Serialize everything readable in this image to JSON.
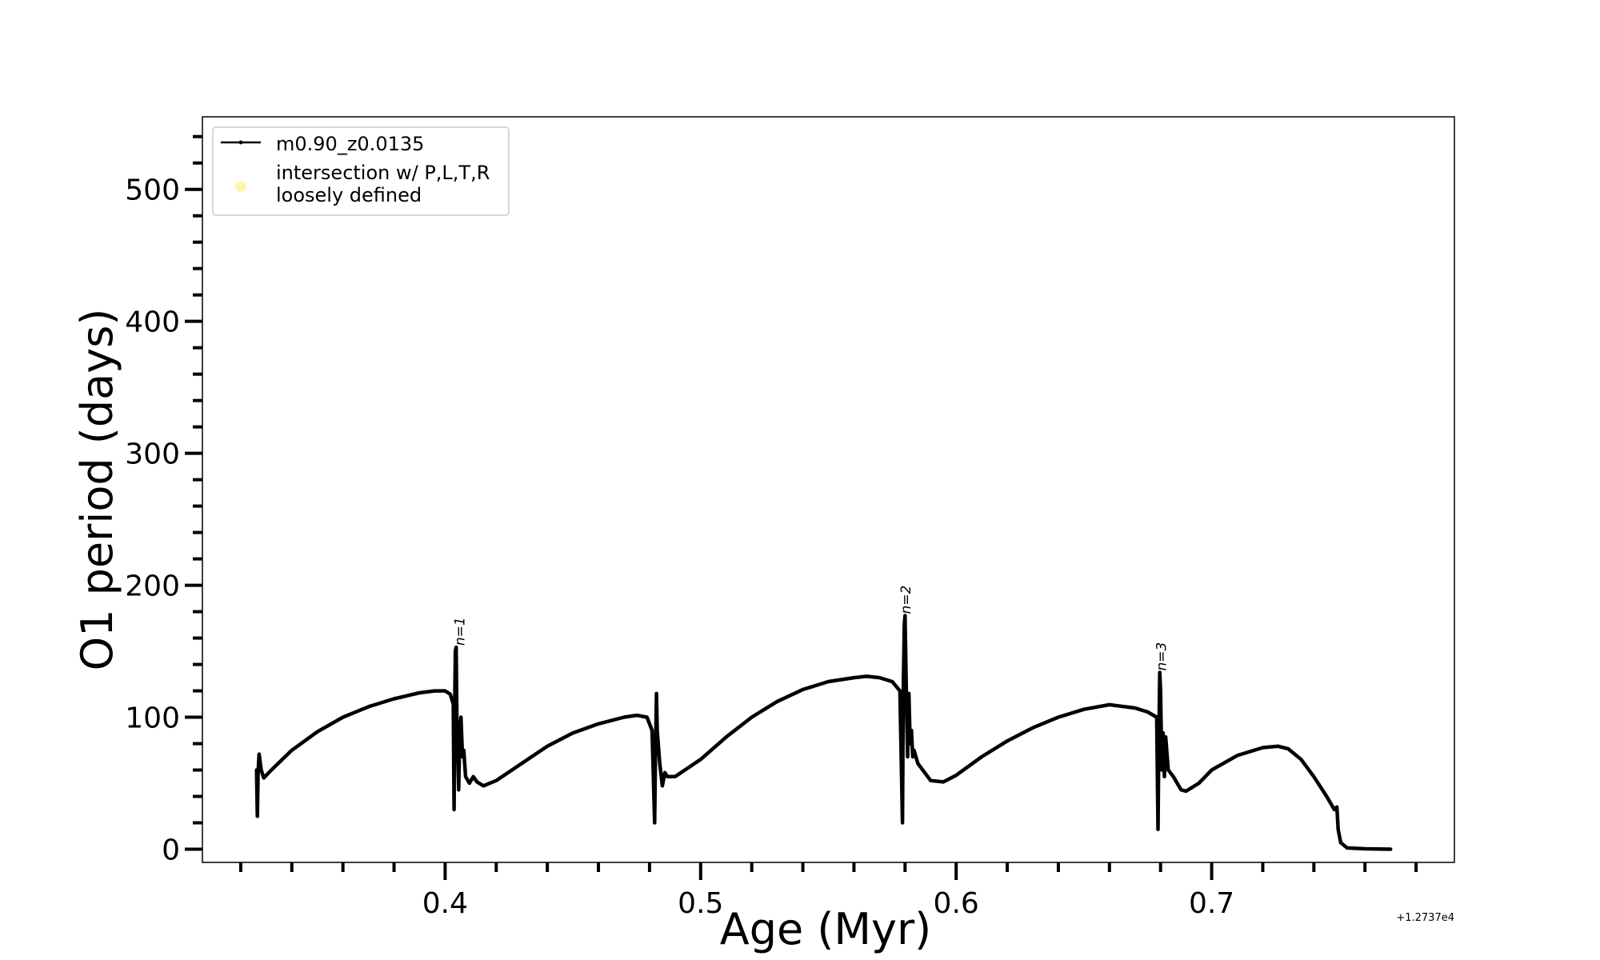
{
  "chart_data": {
    "type": "line",
    "title": "",
    "xlabel": "Age (Myr)",
    "ylabel": "O1 period (days)",
    "x_offset_label": "+1.2737e4",
    "xlim": [
      0.305,
      0.795
    ],
    "ylim": [
      -10,
      555
    ],
    "x_ticks": [
      0.4,
      0.5,
      0.6,
      0.7
    ],
    "x_tick_labels": [
      "0.4",
      "0.5",
      "0.6",
      "0.7"
    ],
    "x_minor_step": 0.02,
    "y_ticks": [
      0,
      100,
      200,
      300,
      400,
      500
    ],
    "y_tick_labels": [
      "0",
      "100",
      "200",
      "300",
      "400",
      "500"
    ],
    "y_minor_step": 20,
    "grid": false,
    "legend": {
      "position": "top-left",
      "entries": [
        {
          "label": "m0.90_z0.0135",
          "marker": "line-dot",
          "color": "#000000"
        },
        {
          "label": "intersection w/ P,L,T,R\nloosely defined",
          "marker": "circle",
          "color": "#fff5b0"
        }
      ]
    },
    "annotations": [
      {
        "text": "n=1",
        "x": 0.4063,
        "y": 153
      },
      {
        "text": "n=2",
        "x": 0.5808,
        "y": 177
      },
      {
        "text": "n=3",
        "x": 0.6808,
        "y": 134
      }
    ],
    "series": [
      {
        "name": "m0.90_z0.0135",
        "color": "#000000",
        "points": [
          [
            0.3262,
            60
          ],
          [
            0.3265,
            25
          ],
          [
            0.3268,
            58
          ],
          [
            0.3272,
            72
          ],
          [
            0.328,
            60
          ],
          [
            0.329,
            54
          ],
          [
            0.332,
            60
          ],
          [
            0.34,
            75
          ],
          [
            0.35,
            89
          ],
          [
            0.36,
            100
          ],
          [
            0.37,
            108
          ],
          [
            0.38,
            114
          ],
          [
            0.39,
            118.5
          ],
          [
            0.396,
            120
          ],
          [
            0.4,
            120
          ],
          [
            0.402,
            117.5
          ],
          [
            0.4032,
            110
          ],
          [
            0.4035,
            30
          ],
          [
            0.4037,
            100
          ],
          [
            0.404,
            150
          ],
          [
            0.4043,
            153
          ],
          [
            0.4046,
            100
          ],
          [
            0.4049,
            75
          ],
          [
            0.4053,
            45
          ],
          [
            0.4058,
            90
          ],
          [
            0.4062,
            100
          ],
          [
            0.4068,
            70
          ],
          [
            0.4073,
            75
          ],
          [
            0.408,
            55
          ],
          [
            0.4095,
            50
          ],
          [
            0.411,
            55
          ],
          [
            0.4125,
            51
          ],
          [
            0.415,
            48
          ],
          [
            0.42,
            52
          ],
          [
            0.43,
            65
          ],
          [
            0.44,
            78
          ],
          [
            0.45,
            88
          ],
          [
            0.46,
            95
          ],
          [
            0.47,
            100
          ],
          [
            0.475,
            101.5
          ],
          [
            0.479,
            100
          ],
          [
            0.481,
            90
          ],
          [
            0.482,
            20
          ],
          [
            0.4823,
            70
          ],
          [
            0.4827,
            118
          ],
          [
            0.483,
            90
          ],
          [
            0.484,
            65
          ],
          [
            0.485,
            48
          ],
          [
            0.486,
            58
          ],
          [
            0.487,
            55
          ],
          [
            0.49,
            55
          ],
          [
            0.5,
            68
          ],
          [
            0.51,
            85
          ],
          [
            0.52,
            100
          ],
          [
            0.53,
            112
          ],
          [
            0.54,
            121
          ],
          [
            0.55,
            127
          ],
          [
            0.56,
            130
          ],
          [
            0.565,
            131
          ],
          [
            0.57,
            130
          ],
          [
            0.575,
            127
          ],
          [
            0.578,
            120
          ],
          [
            0.579,
            20
          ],
          [
            0.5793,
            120
          ],
          [
            0.5797,
            170
          ],
          [
            0.58,
            177
          ],
          [
            0.5805,
            120
          ],
          [
            0.581,
            70
          ],
          [
            0.5815,
            118
          ],
          [
            0.582,
            80
          ],
          [
            0.5825,
            90
          ],
          [
            0.583,
            70
          ],
          [
            0.5835,
            75
          ],
          [
            0.585,
            65
          ],
          [
            0.59,
            52
          ],
          [
            0.595,
            51
          ],
          [
            0.6,
            56
          ],
          [
            0.61,
            70
          ],
          [
            0.62,
            82
          ],
          [
            0.63,
            92
          ],
          [
            0.64,
            100
          ],
          [
            0.65,
            106
          ],
          [
            0.66,
            109.5
          ],
          [
            0.67,
            107
          ],
          [
            0.675,
            104
          ],
          [
            0.6785,
            100
          ],
          [
            0.679,
            15
          ],
          [
            0.6793,
            80
          ],
          [
            0.6797,
            134
          ],
          [
            0.68,
            120
          ],
          [
            0.6805,
            60
          ],
          [
            0.681,
            88
          ],
          [
            0.6815,
            55
          ],
          [
            0.682,
            85
          ],
          [
            0.683,
            60
          ],
          [
            0.685,
            55
          ],
          [
            0.688,
            45
          ],
          [
            0.69,
            44
          ],
          [
            0.695,
            50
          ],
          [
            0.7,
            60
          ],
          [
            0.71,
            71
          ],
          [
            0.72,
            77
          ],
          [
            0.726,
            78
          ],
          [
            0.73,
            76
          ],
          [
            0.735,
            68
          ],
          [
            0.74,
            55
          ],
          [
            0.745,
            40
          ],
          [
            0.748,
            30
          ],
          [
            0.749,
            32
          ],
          [
            0.7495,
            15
          ],
          [
            0.7505,
            5
          ],
          [
            0.753,
            1
          ],
          [
            0.76,
            0.3
          ],
          [
            0.77,
            0
          ]
        ]
      }
    ]
  }
}
